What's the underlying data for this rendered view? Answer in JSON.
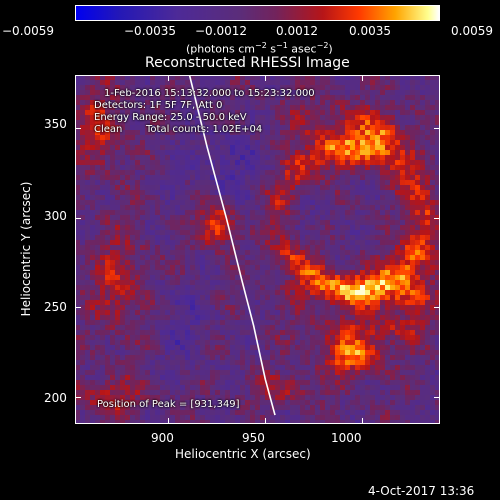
{
  "figure": {
    "title": "Reconstructed RHESSI Image",
    "timestamp": "4-Oct-2017 13:36"
  },
  "colorbar": {
    "tick_labels": [
      "−0.0059",
      "−0.0035",
      "−0.0012",
      "0.0012",
      "0.0035",
      "0.0059"
    ],
    "units_parts": {
      "a": "(photons cm",
      "a_sup": "−2",
      "b": " s",
      "b_sup": "−1",
      "c": " asec",
      "c_sup": "−2",
      "d": ")"
    },
    "min": -0.0059,
    "max": 0.0059,
    "colors": [
      "#0000f0",
      "#5b2d7a",
      "#ff3a00",
      "#ffffff"
    ]
  },
  "annotations": {
    "line1": "1-Feb-2016 15:13:32.000 to 15:23:32.000",
    "line2": "Detectors: 1F 5F 7F, Att 0",
    "line3": "Energy Range: 25.0 - 50.0 keV",
    "line4_a": "Clean",
    "line4_b": "Total counts: 1.02E+04",
    "peak": "Position of Peak = [931,349]"
  },
  "chart_data": {
    "type": "heatmap",
    "title": "Reconstructed RHESSI Image",
    "xlabel": "Heliocentric X (arcsec)",
    "ylabel": "Heliocentric Y (arcsec)",
    "xlim": [
      852,
      1040
    ],
    "ylim": [
      185,
      380
    ],
    "x_ticks": [
      900,
      950,
      1000
    ],
    "y_ticks": [
      200,
      250,
      300,
      350
    ],
    "x_tick_labels": [
      "900",
      "950",
      "1000"
    ],
    "y_tick_labels": [
      "200",
      "250",
      "300",
      "350"
    ],
    "value_range": [
      -0.0059,
      0.0059
    ],
    "peak_position": [
      931,
      349
    ],
    "limb_curve_x": [
      911,
      920,
      930,
      938,
      944,
      950,
      955
    ],
    "limb_curve_y": [
      380,
      340,
      300,
      265,
      240,
      210,
      190
    ]
  }
}
